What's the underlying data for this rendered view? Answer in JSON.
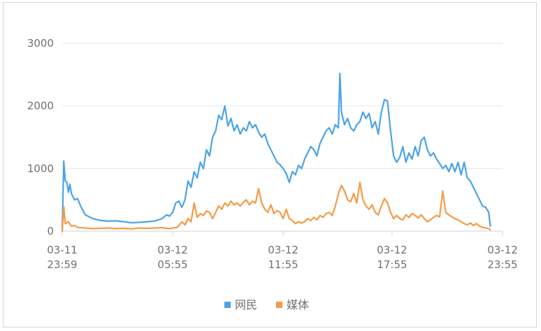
{
  "chart_data": {
    "type": "line",
    "x_ticks": [
      [
        "03-11",
        "23:59"
      ],
      [
        "03-12",
        "05:55"
      ],
      [
        "03-12",
        "11:55"
      ],
      [
        "03-12",
        "17:55"
      ],
      [
        "03-12",
        "23:55"
      ]
    ],
    "ylim": [
      0,
      3000
    ],
    "y_ticks": [
      0,
      1000,
      2000,
      3000
    ],
    "grid": true,
    "legend_position": "bottom-center",
    "x_points": 288,
    "series": [
      {
        "name": "网民",
        "color": "#4aa3e8",
        "keypoints": [
          [
            0,
            0
          ],
          [
            1,
            1120
          ],
          [
            2,
            800
          ],
          [
            3,
            780
          ],
          [
            4,
            620
          ],
          [
            5,
            750
          ],
          [
            6,
            600
          ],
          [
            8,
            500
          ],
          [
            10,
            520
          ],
          [
            12,
            400
          ],
          [
            15,
            260
          ],
          [
            20,
            200
          ],
          [
            25,
            170
          ],
          [
            30,
            160
          ],
          [
            35,
            165
          ],
          [
            40,
            150
          ],
          [
            45,
            135
          ],
          [
            50,
            140
          ],
          [
            55,
            150
          ],
          [
            60,
            160
          ],
          [
            65,
            200
          ],
          [
            68,
            260
          ],
          [
            70,
            240
          ],
          [
            72,
            300
          ],
          [
            74,
            450
          ],
          [
            76,
            480
          ],
          [
            78,
            380
          ],
          [
            80,
            500
          ],
          [
            82,
            800
          ],
          [
            84,
            700
          ],
          [
            86,
            950
          ],
          [
            88,
            850
          ],
          [
            90,
            1100
          ],
          [
            92,
            1000
          ],
          [
            94,
            1300
          ],
          [
            96,
            1200
          ],
          [
            98,
            1500
          ],
          [
            100,
            1600
          ],
          [
            102,
            1850
          ],
          [
            104,
            1780
          ],
          [
            106,
            2000
          ],
          [
            108,
            1680
          ],
          [
            110,
            1800
          ],
          [
            112,
            1600
          ],
          [
            114,
            1700
          ],
          [
            116,
            1550
          ],
          [
            118,
            1650
          ],
          [
            120,
            1600
          ],
          [
            122,
            1750
          ],
          [
            124,
            1650
          ],
          [
            126,
            1700
          ],
          [
            128,
            1580
          ],
          [
            130,
            1500
          ],
          [
            132,
            1550
          ],
          [
            134,
            1400
          ],
          [
            136,
            1300
          ],
          [
            138,
            1200
          ],
          [
            140,
            1100
          ],
          [
            142,
            1060
          ],
          [
            144,
            1000
          ],
          [
            146,
            920
          ],
          [
            148,
            780
          ],
          [
            150,
            950
          ],
          [
            152,
            900
          ],
          [
            154,
            1050
          ],
          [
            156,
            1000
          ],
          [
            158,
            1150
          ],
          [
            160,
            1250
          ],
          [
            162,
            1350
          ],
          [
            164,
            1300
          ],
          [
            166,
            1200
          ],
          [
            168,
            1400
          ],
          [
            170,
            1500
          ],
          [
            172,
            1600
          ],
          [
            174,
            1650
          ],
          [
            176,
            1550
          ],
          [
            178,
            1700
          ],
          [
            180,
            1650
          ],
          [
            181,
            2520
          ],
          [
            182,
            1900
          ],
          [
            184,
            1700
          ],
          [
            186,
            1800
          ],
          [
            188,
            1650
          ],
          [
            190,
            1600
          ],
          [
            192,
            1700
          ],
          [
            194,
            1750
          ],
          [
            196,
            1900
          ],
          [
            198,
            1800
          ],
          [
            200,
            1880
          ],
          [
            202,
            1650
          ],
          [
            204,
            1750
          ],
          [
            206,
            1550
          ],
          [
            208,
            1900
          ],
          [
            210,
            2100
          ],
          [
            212,
            2080
          ],
          [
            214,
            1600
          ],
          [
            216,
            1200
          ],
          [
            218,
            1100
          ],
          [
            220,
            1180
          ],
          [
            222,
            1350
          ],
          [
            224,
            1100
          ],
          [
            226,
            1250
          ],
          [
            228,
            1150
          ],
          [
            230,
            1350
          ],
          [
            232,
            1200
          ],
          [
            234,
            1450
          ],
          [
            236,
            1500
          ],
          [
            238,
            1300
          ],
          [
            240,
            1200
          ],
          [
            242,
            1250
          ],
          [
            244,
            1150
          ],
          [
            246,
            1080
          ],
          [
            248,
            1000
          ],
          [
            250,
            1050
          ],
          [
            252,
            950
          ],
          [
            254,
            1080
          ],
          [
            256,
            950
          ],
          [
            258,
            1100
          ],
          [
            260,
            900
          ],
          [
            262,
            1100
          ],
          [
            264,
            850
          ],
          [
            266,
            800
          ],
          [
            268,
            700
          ],
          [
            270,
            600
          ],
          [
            272,
            500
          ],
          [
            274,
            400
          ],
          [
            276,
            380
          ],
          [
            278,
            300
          ],
          [
            279,
            80
          ]
        ]
      },
      {
        "name": "媒体",
        "color": "#f59a46",
        "keypoints": [
          [
            0,
            0
          ],
          [
            1,
            390
          ],
          [
            2,
            120
          ],
          [
            4,
            150
          ],
          [
            6,
            80
          ],
          [
            8,
            90
          ],
          [
            10,
            60
          ],
          [
            15,
            50
          ],
          [
            20,
            40
          ],
          [
            25,
            45
          ],
          [
            30,
            50
          ],
          [
            35,
            40
          ],
          [
            40,
            45
          ],
          [
            45,
            35
          ],
          [
            50,
            50
          ],
          [
            55,
            45
          ],
          [
            60,
            50
          ],
          [
            65,
            55
          ],
          [
            70,
            40
          ],
          [
            75,
            60
          ],
          [
            78,
            150
          ],
          [
            80,
            100
          ],
          [
            82,
            200
          ],
          [
            84,
            150
          ],
          [
            86,
            450
          ],
          [
            88,
            220
          ],
          [
            90,
            280
          ],
          [
            92,
            250
          ],
          [
            94,
            320
          ],
          [
            96,
            300
          ],
          [
            98,
            200
          ],
          [
            100,
            300
          ],
          [
            102,
            400
          ],
          [
            104,
            350
          ],
          [
            106,
            450
          ],
          [
            108,
            400
          ],
          [
            110,
            480
          ],
          [
            112,
            420
          ],
          [
            114,
            450
          ],
          [
            116,
            400
          ],
          [
            118,
            460
          ],
          [
            120,
            500
          ],
          [
            122,
            420
          ],
          [
            124,
            480
          ],
          [
            126,
            450
          ],
          [
            128,
            680
          ],
          [
            130,
            450
          ],
          [
            132,
            350
          ],
          [
            134,
            300
          ],
          [
            136,
            420
          ],
          [
            138,
            280
          ],
          [
            140,
            330
          ],
          [
            142,
            300
          ],
          [
            144,
            200
          ],
          [
            146,
            350
          ],
          [
            148,
            200
          ],
          [
            150,
            170
          ],
          [
            152,
            120
          ],
          [
            154,
            150
          ],
          [
            156,
            130
          ],
          [
            158,
            150
          ],
          [
            160,
            200
          ],
          [
            162,
            170
          ],
          [
            164,
            220
          ],
          [
            166,
            180
          ],
          [
            168,
            250
          ],
          [
            170,
            220
          ],
          [
            172,
            280
          ],
          [
            174,
            300
          ],
          [
            176,
            250
          ],
          [
            178,
            400
          ],
          [
            180,
            600
          ],
          [
            182,
            730
          ],
          [
            184,
            640
          ],
          [
            186,
            500
          ],
          [
            188,
            470
          ],
          [
            190,
            600
          ],
          [
            192,
            450
          ],
          [
            194,
            780
          ],
          [
            196,
            500
          ],
          [
            198,
            400
          ],
          [
            200,
            350
          ],
          [
            202,
            420
          ],
          [
            204,
            300
          ],
          [
            206,
            260
          ],
          [
            208,
            400
          ],
          [
            210,
            520
          ],
          [
            212,
            450
          ],
          [
            214,
            300
          ],
          [
            216,
            200
          ],
          [
            218,
            250
          ],
          [
            220,
            200
          ],
          [
            222,
            180
          ],
          [
            224,
            260
          ],
          [
            226,
            220
          ],
          [
            228,
            280
          ],
          [
            230,
            250
          ],
          [
            232,
            210
          ],
          [
            234,
            260
          ],
          [
            236,
            200
          ],
          [
            238,
            150
          ],
          [
            240,
            180
          ],
          [
            242,
            220
          ],
          [
            244,
            250
          ],
          [
            246,
            230
          ],
          [
            248,
            640
          ],
          [
            250,
            300
          ],
          [
            252,
            260
          ],
          [
            254,
            230
          ],
          [
            256,
            200
          ],
          [
            258,
            180
          ],
          [
            260,
            150
          ],
          [
            262,
            120
          ],
          [
            264,
            100
          ],
          [
            266,
            130
          ],
          [
            268,
            90
          ],
          [
            270,
            120
          ],
          [
            272,
            80
          ],
          [
            274,
            60
          ],
          [
            276,
            50
          ],
          [
            278,
            40
          ],
          [
            279,
            20
          ]
        ]
      }
    ]
  }
}
